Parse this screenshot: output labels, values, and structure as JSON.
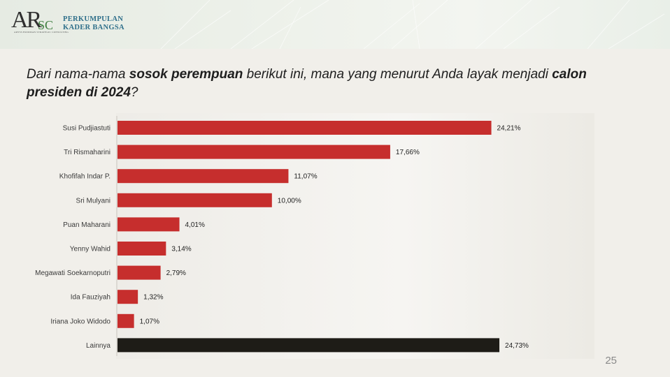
{
  "header": {
    "logo_text": "ARSC",
    "logo_subtitle": "ARYSS BUDIMAN STRATEGIC CONSULTING",
    "org_line1": "PERKUMPULAN",
    "org_line2": "KADER BANGSA"
  },
  "question": {
    "part1": "Dari nama-nama ",
    "bold1": "sosok perempuan",
    "part2": " berikut ini, mana yang menurut Anda layak menjadi ",
    "bold2": "calon presiden di 2024",
    "part3": "?"
  },
  "page_number": "25",
  "chart_data": {
    "type": "bar",
    "orientation": "horizontal",
    "categories": [
      "Susi Pudjiastuti",
      "Tri Rismaharini",
      "Khofifah Indar P.",
      "Sri Mulyani",
      "Puan Maharani",
      "Yenny Wahid",
      "Megawati Soekarnoputri",
      "Ida Fauziyah",
      "Iriana Joko Widodo",
      "Lainnya"
    ],
    "values": [
      24.21,
      17.66,
      11.07,
      10.0,
      4.01,
      3.14,
      2.79,
      1.32,
      1.07,
      24.73
    ],
    "value_labels": [
      "24,21%",
      "17,66%",
      "11,07%",
      "10,00%",
      "4,01%",
      "3,14%",
      "2,79%",
      "1,32%",
      "1,07%",
      "24,73%"
    ],
    "colors": [
      "#c62e2d",
      "#c62e2d",
      "#c62e2d",
      "#c62e2d",
      "#c62e2d",
      "#c62e2d",
      "#c62e2d",
      "#c62e2d",
      "#c62e2d",
      "#1e1c17"
    ],
    "xlim": [
      0,
      25
    ],
    "grid": false,
    "legend": false
  }
}
